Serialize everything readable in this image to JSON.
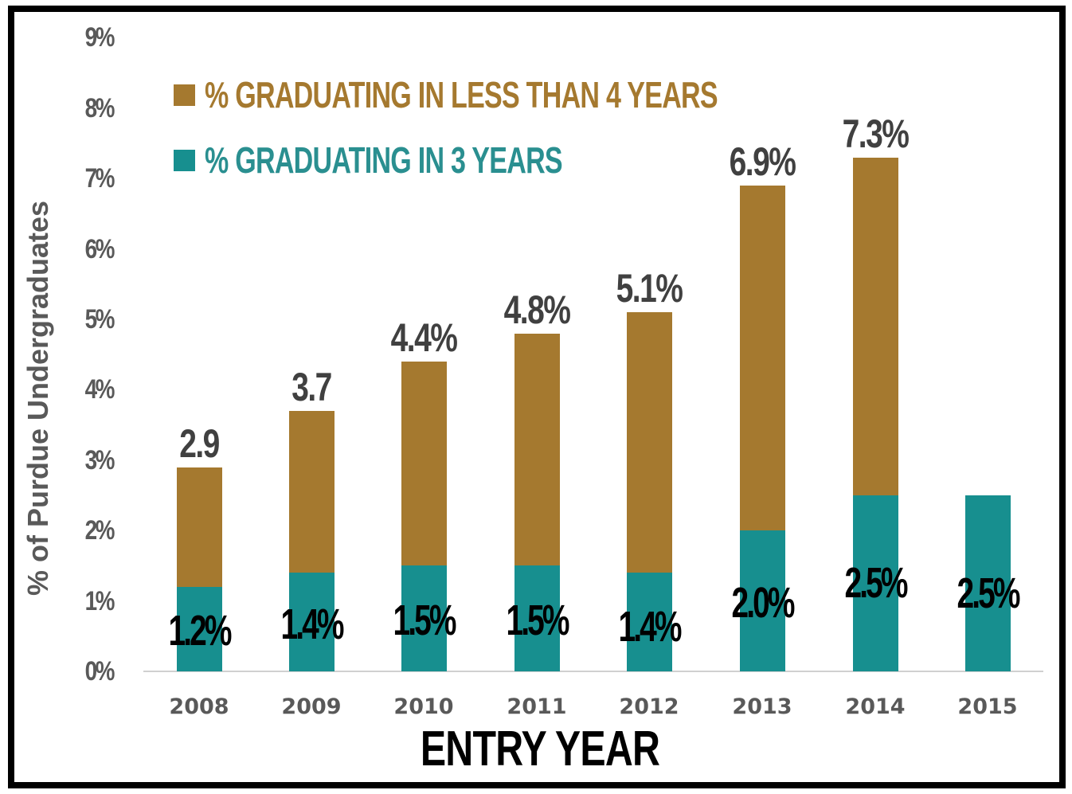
{
  "chart_data": {
    "type": "bar",
    "stacked": true,
    "title": "",
    "xlabel": "ENTRY YEAR",
    "ylabel": "% of Purdue Undergraduates",
    "ylim": [
      0,
      9
    ],
    "yticks": [
      "0%",
      "1%",
      "2%",
      "3%",
      "4%",
      "5%",
      "6%",
      "7%",
      "8%",
      "9%"
    ],
    "categories": [
      "2008",
      "2009",
      "2010",
      "2011",
      "2012",
      "2013",
      "2014",
      "2015"
    ],
    "series": [
      {
        "name": "% GRADUATING IN 3 YEARS",
        "color": "#178F8F",
        "values": [
          1.2,
          1.4,
          1.5,
          1.5,
          1.4,
          2.0,
          2.5,
          2.5
        ],
        "labels": [
          "1.2%",
          "1.4%",
          "1.5%",
          "1.5%",
          "1.4%",
          "2.0%",
          "2.5%",
          "2.5%"
        ]
      },
      {
        "name": "% GRADUATING IN LESS THAN 4 YEARS",
        "color": "#A5792F",
        "totals": [
          2.9,
          3.7,
          4.4,
          4.8,
          5.1,
          6.9,
          7.3,
          null
        ],
        "values": [
          1.7,
          2.3,
          2.9,
          3.3,
          3.7,
          4.9,
          4.8,
          null
        ],
        "labels": [
          "2.9",
          "3.7",
          "4.4%",
          "4.8%",
          "5.1%",
          "6.9%",
          "7.3%",
          ""
        ]
      }
    ],
    "legend_position": "top-left",
    "grid": false
  },
  "legend": {
    "items": [
      {
        "label": "% GRADUATING IN LESS THAN 4 YEARS",
        "color": "#A5792F"
      },
      {
        "label": "% GRADUATING IN 3 YEARS",
        "color": "#178F8F"
      }
    ]
  },
  "axis": {
    "x_title": "ENTRY YEAR",
    "y_title": "% of Purdue Undergraduates"
  }
}
